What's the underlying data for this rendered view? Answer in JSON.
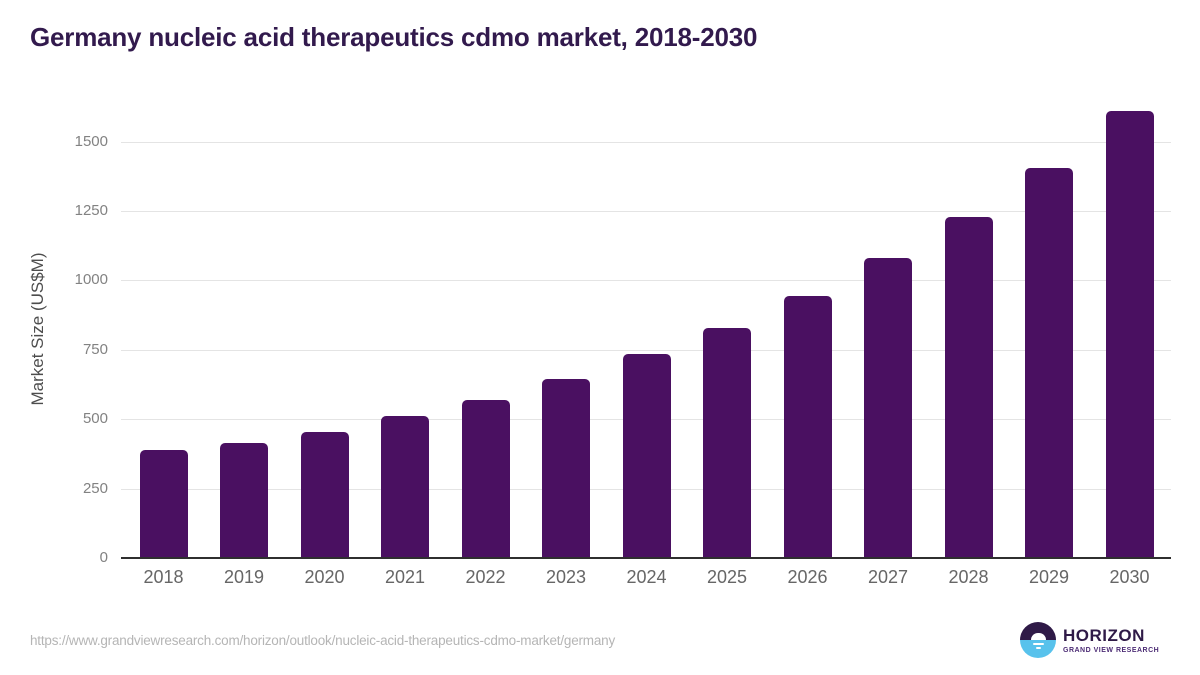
{
  "title": "Germany nucleic acid therapeutics cdmo market, 2018-2030",
  "chart_data": {
    "type": "bar",
    "title": "Germany nucleic acid therapeutics cdmo market, 2018-2030",
    "categories": [
      "2018",
      "2019",
      "2020",
      "2021",
      "2022",
      "2023",
      "2024",
      "2025",
      "2026",
      "2027",
      "2028",
      "2029",
      "2030"
    ],
    "values": [
      390,
      415,
      455,
      510,
      570,
      645,
      735,
      830,
      945,
      1080,
      1230,
      1405,
      1610
    ],
    "xlabel": "",
    "ylabel": "Market Size (US$M)",
    "ylim": [
      0,
      1650
    ],
    "yticks": [
      0,
      250,
      500,
      750,
      1000,
      1250,
      1500
    ],
    "grid": "horizontal gridlines on",
    "legend": "none",
    "bar_color": "#4a1061"
  },
  "colors": {
    "title_text": "#321a4d",
    "bar": "#4a1061",
    "axis_line": "#2f2f2f",
    "gridline": "#e4e4e4",
    "tick_text": "#828282",
    "xtick_text": "#666666",
    "url_text": "#b5b5b5",
    "logo_purple": "#2f1a47",
    "logo_blue": "#58c2ec"
  },
  "footer": {
    "source_url": "https://www.grandviewresearch.com/horizon/outlook/nucleic-acid-therapeutics-cdmo-market/germany",
    "logo": {
      "name": "HORIZON",
      "subtitle": "GRAND VIEW RESEARCH"
    }
  }
}
